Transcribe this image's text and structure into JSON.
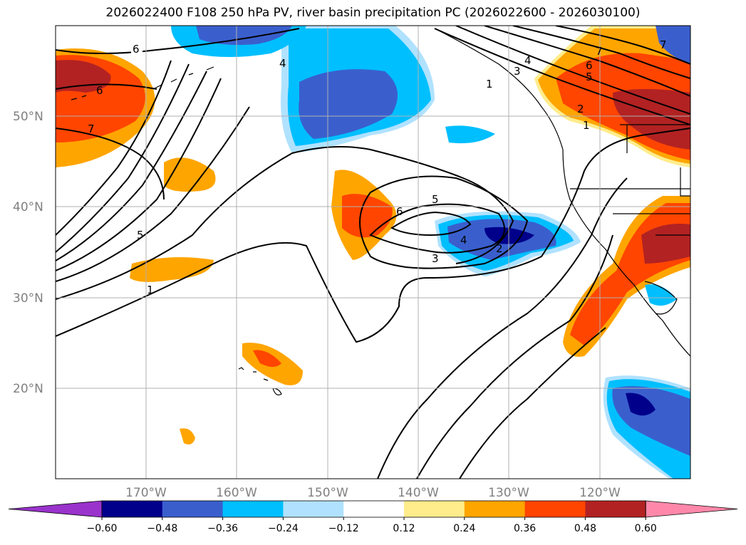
{
  "title": "2026022400 F108 250 hPa PV, river basin precipitation PC (2026022600 - 2026030100)",
  "map": {
    "lat_labels": [
      "20°N",
      "30°N",
      "40°N",
      "50°N"
    ],
    "lon_labels": [
      "170°W",
      "160°W",
      "150°W",
      "140°W",
      "130°W",
      "120°W"
    ],
    "contour_labels": [
      "6",
      "4",
      "6",
      "7",
      "5",
      "1",
      "5",
      "6",
      "4",
      "2",
      "3",
      "4",
      "3",
      "1",
      "2",
      "1",
      "5",
      "6",
      "7",
      "7"
    ]
  },
  "colorbar": {
    "ticks": [
      "−0.60",
      "−0.48",
      "−0.36",
      "−0.24",
      "−0.12",
      "0.12",
      "0.24",
      "0.36",
      "0.48",
      "0.60"
    ],
    "colors": [
      "#9933cc",
      "#00008b",
      "#3a5fcd",
      "#00bfff",
      "#b0e2ff",
      "#ffffff",
      "#ffec8b",
      "#ffa500",
      "#ff4500",
      "#b22222",
      "#ff88aa"
    ]
  }
}
